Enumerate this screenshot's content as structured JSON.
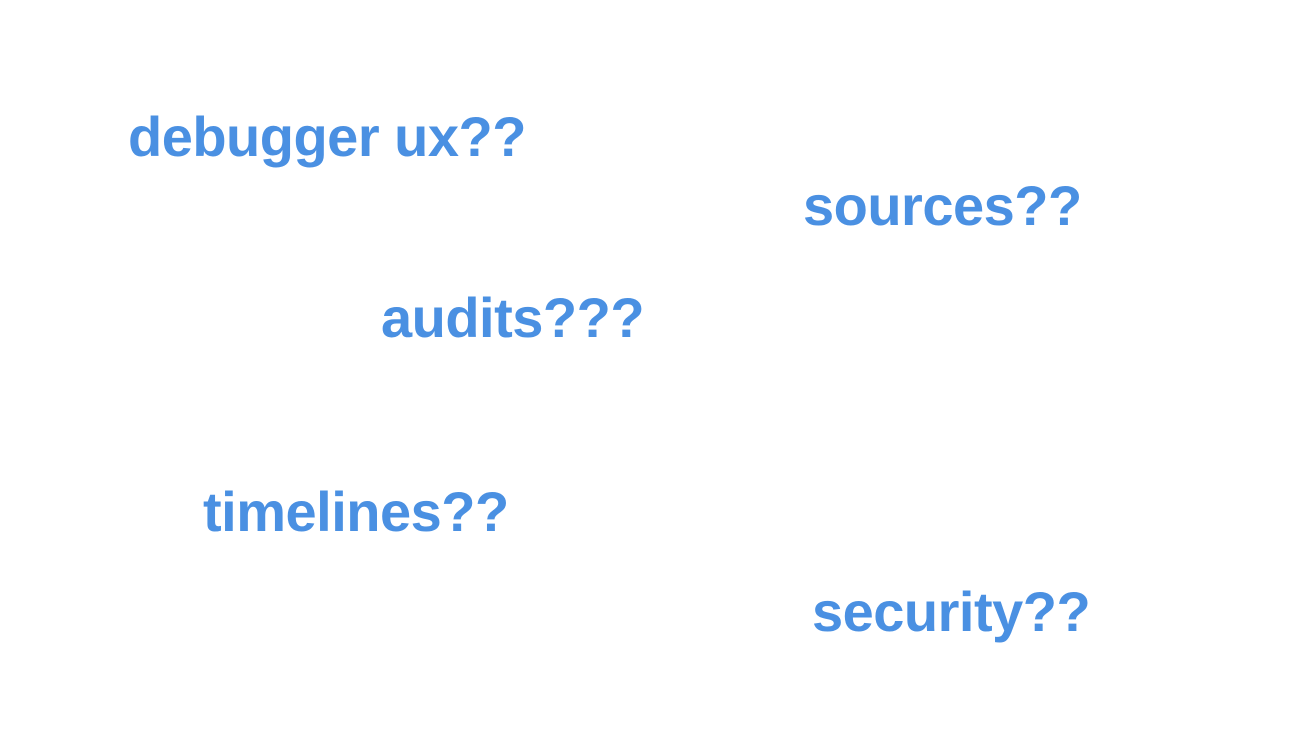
{
  "colors": {
    "text": "#4a90e2",
    "background": "#ffffff"
  },
  "words": [
    {
      "text": "debugger ux??"
    },
    {
      "text": "sources??"
    },
    {
      "text": "audits???"
    },
    {
      "text": "timelines??"
    },
    {
      "text": "security??"
    }
  ]
}
